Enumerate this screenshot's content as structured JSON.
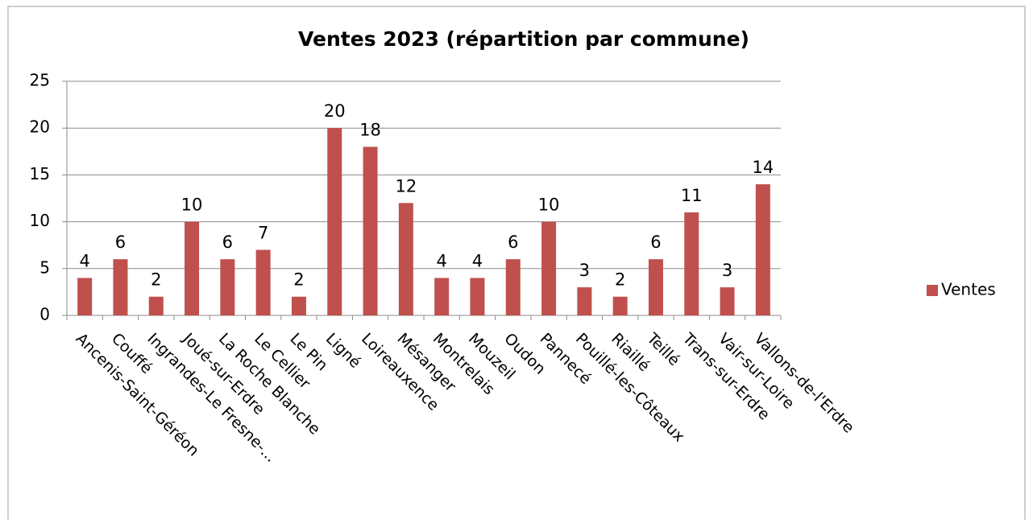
{
  "chart_data": {
    "type": "bar",
    "title": "Ventes 2023 (répartition par commune)",
    "categories": [
      "Ancenis-Saint-Géréon",
      "Couffé",
      "Ingrandes-Le Fresne-...",
      "Joué-sur-Erdre",
      "La Roche Blanche",
      "Le Cellier",
      "Le Pin",
      "Ligné",
      "Loireauxence",
      "Mésanger",
      "Montrelais",
      "Mouzeil",
      "Oudon",
      "Pannecé",
      "Pouillé-les-Côteaux",
      "Riaillé",
      "Teillé",
      "Trans-sur-Erdre",
      "Vair-sur-Loire",
      "Vallons-de-l'Erdre"
    ],
    "series": [
      {
        "name": "Ventes",
        "color": "#c0504d",
        "values": [
          4,
          6,
          2,
          10,
          6,
          7,
          2,
          20,
          18,
          12,
          4,
          4,
          6,
          10,
          3,
          2,
          6,
          11,
          3,
          14
        ]
      }
    ],
    "ylim": [
      0,
      25
    ],
    "yticks": [
      0,
      5,
      10,
      15,
      20,
      25
    ],
    "grid": true,
    "legend": "right"
  }
}
